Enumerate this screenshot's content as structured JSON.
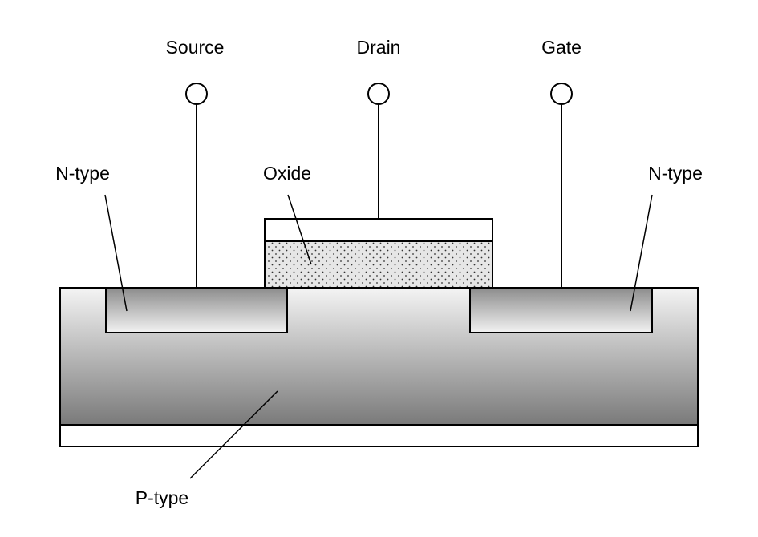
{
  "diagram": {
    "labels": {
      "source": "Source",
      "drain": "Drain",
      "gate": "Gate",
      "ntype_left": "N-type",
      "oxide": "Oxide",
      "ntype_right": "N-type",
      "ptype": "P-type"
    },
    "colors": {
      "outline": "#000000",
      "substrate_top": "#f4f4f4",
      "substrate_bottom": "#7a7a7a",
      "ntype_top": "#8c8c8c",
      "ntype_bottom": "#f2f2f2",
      "oxide_fill": "#e6e6e6",
      "oxide_dots": "#333333",
      "background": "#ffffff"
    }
  }
}
